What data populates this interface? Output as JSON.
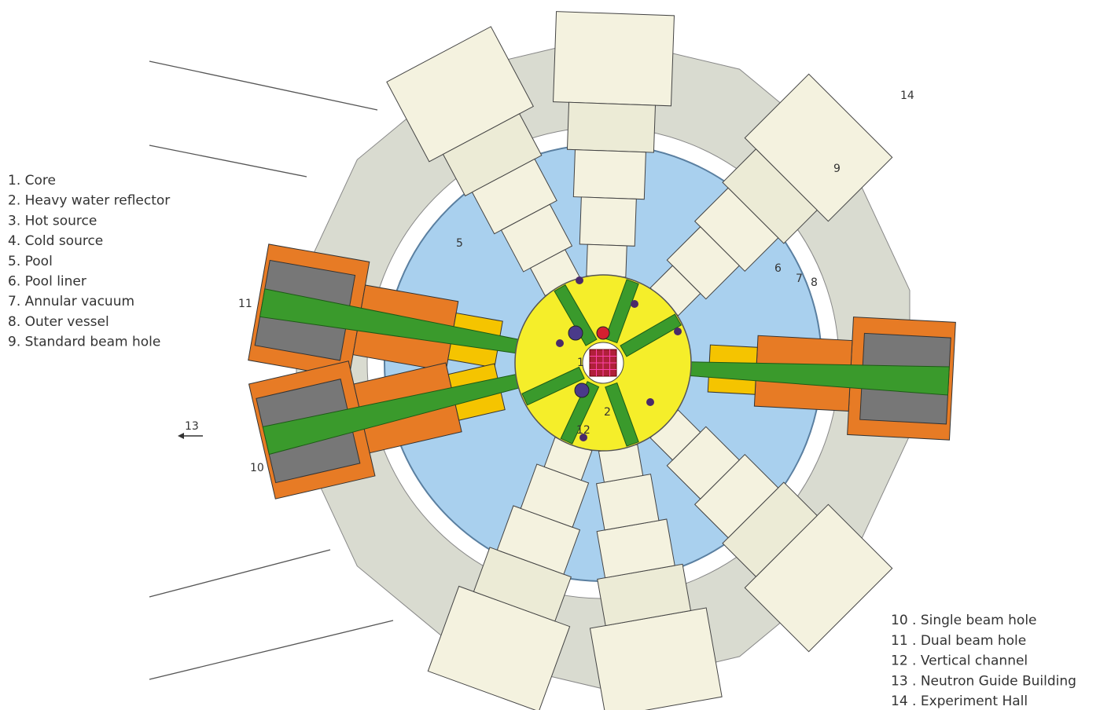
{
  "legend_left": [
    "1. Core",
    "2. Heavy water reflector",
    "3. Hot source",
    "4. Cold source",
    "5. Pool",
    "6. Pool liner",
    "7. Annular vacuum",
    "8. Outer vessel",
    "9. Standard beam hole"
  ],
  "legend_right": [
    "10 . Single beam hole",
    "11 . Dual beam hole",
    "12 . Vertical channel",
    "13 . Neutron Guide Building",
    "14 . Experiment Hall"
  ],
  "labels": [
    "1",
    "2",
    "5",
    "6",
    "7",
    "8",
    "9",
    "10",
    "11",
    "12",
    "13",
    "14"
  ]
}
